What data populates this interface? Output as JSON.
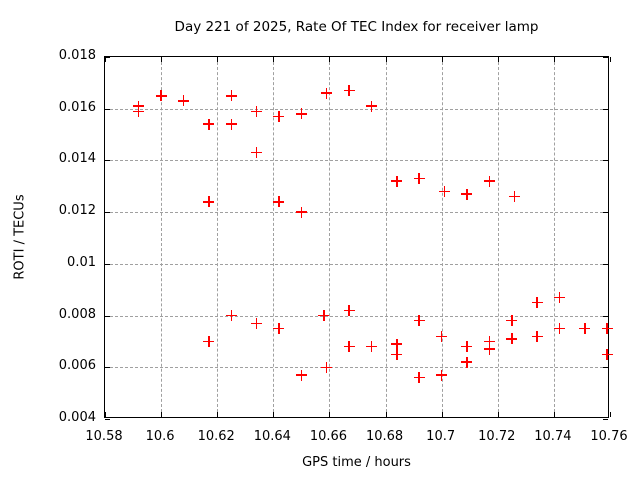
{
  "chart_data": {
    "type": "scatter",
    "title": "Day 221 of 2025, Rate Of TEC Index for receiver lamp",
    "xlabel": "GPS time / hours",
    "ylabel": "ROTI / TECUs",
    "xlim": [
      10.58,
      10.76
    ],
    "ylim": [
      0.004,
      0.018
    ],
    "xticks": [
      "10.58",
      "10.6",
      "10.62",
      "10.64",
      "10.66",
      "10.68",
      "10.7",
      "10.72",
      "10.74",
      "10.76"
    ],
    "yticks": [
      "0.004",
      "0.006",
      "0.008",
      "0.01",
      "0.012",
      "0.014",
      "0.016",
      "0.018"
    ],
    "grid": true,
    "legend_position": "none",
    "marker": "plus",
    "marker_color": "#ff0000",
    "axis_color": "#000000",
    "grid_color": "#a0a0a0",
    "background_color": "#ffffff",
    "series": [
      {
        "name": "ROTI",
        "points": [
          [
            10.592,
            0.0161
          ],
          [
            10.592,
            0.0159
          ],
          [
            10.6,
            0.0165
          ],
          [
            10.608,
            0.0163
          ],
          [
            10.617,
            0.0154
          ],
          [
            10.625,
            0.0165
          ],
          [
            10.625,
            0.0154
          ],
          [
            10.634,
            0.0159
          ],
          [
            10.634,
            0.0143
          ],
          [
            10.642,
            0.0157
          ],
          [
            10.65,
            0.0158
          ],
          [
            10.659,
            0.0166
          ],
          [
            10.667,
            0.0167
          ],
          [
            10.675,
            0.0161
          ],
          [
            10.617,
            0.0124
          ],
          [
            10.642,
            0.0124
          ],
          [
            10.65,
            0.012
          ],
          [
            10.684,
            0.0132
          ],
          [
            10.692,
            0.0133
          ],
          [
            10.701,
            0.0128
          ],
          [
            10.709,
            0.0127
          ],
          [
            10.717,
            0.0132
          ],
          [
            10.726,
            0.0126
          ],
          [
            10.617,
            0.007
          ],
          [
            10.625,
            0.008
          ],
          [
            10.634,
            0.0077
          ],
          [
            10.642,
            0.0075
          ],
          [
            10.65,
            0.0057
          ],
          [
            10.658,
            0.008
          ],
          [
            10.659,
            0.006
          ],
          [
            10.667,
            0.0082
          ],
          [
            10.667,
            0.0068
          ],
          [
            10.675,
            0.0068
          ],
          [
            10.684,
            0.0069
          ],
          [
            10.684,
            0.0065
          ],
          [
            10.692,
            0.0078
          ],
          [
            10.692,
            0.0056
          ],
          [
            10.7,
            0.0072
          ],
          [
            10.7,
            0.0057
          ],
          [
            10.709,
            0.0068
          ],
          [
            10.709,
            0.0062
          ],
          [
            10.717,
            0.007
          ],
          [
            10.717,
            0.0067
          ],
          [
            10.725,
            0.0078
          ],
          [
            10.725,
            0.0071
          ],
          [
            10.734,
            0.0085
          ],
          [
            10.734,
            0.0072
          ],
          [
            10.742,
            0.0087
          ],
          [
            10.742,
            0.0075
          ],
          [
            10.751,
            0.0075
          ],
          [
            10.759,
            0.0075
          ],
          [
            10.759,
            0.0065
          ]
        ]
      }
    ]
  }
}
